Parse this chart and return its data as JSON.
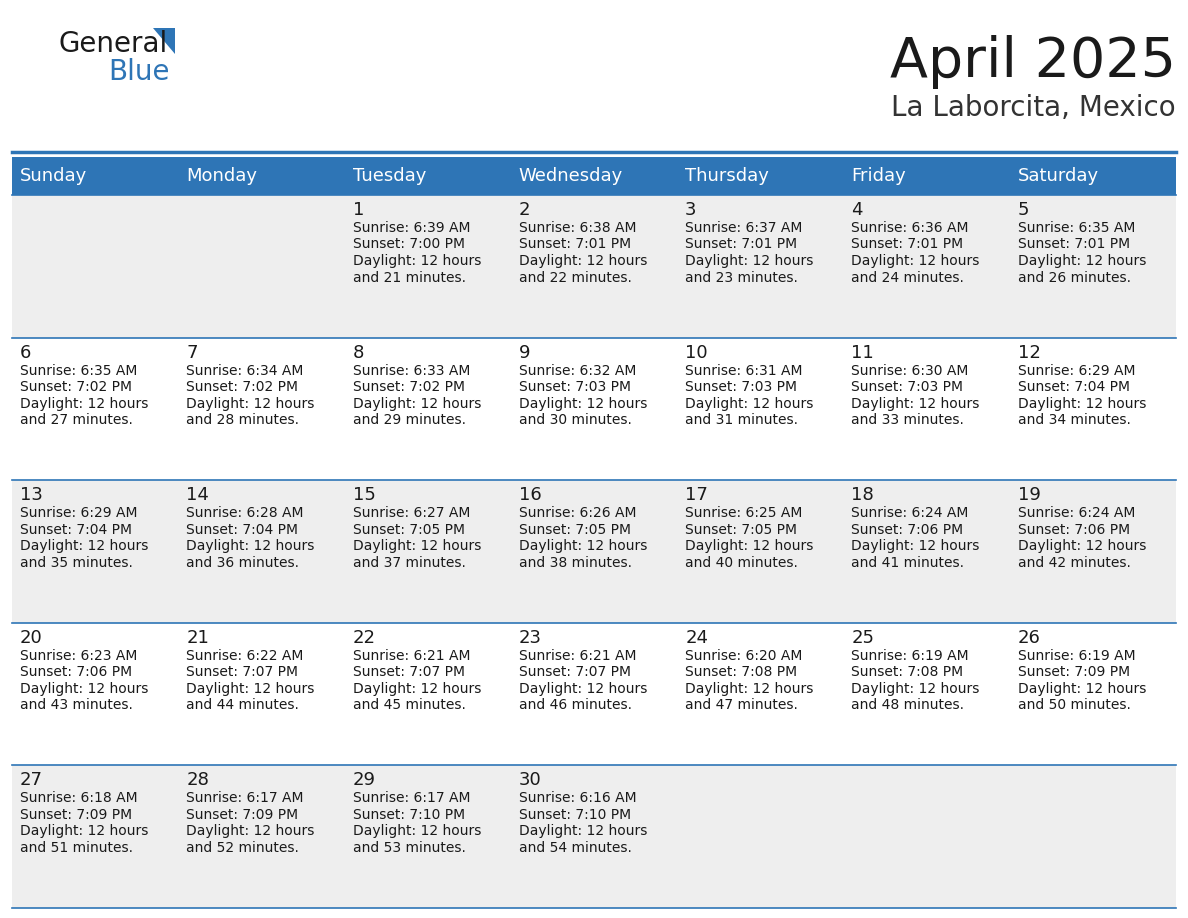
{
  "title": "April 2025",
  "subtitle": "La Laborcita, Mexico",
  "header_bg": "#2e75b6",
  "header_text": "#ffffff",
  "cell_bg_light": "#eeeeee",
  "cell_bg_white": "#ffffff",
  "row_line_color": "#2e75b6",
  "day_names": [
    "Sunday",
    "Monday",
    "Tuesday",
    "Wednesday",
    "Thursday",
    "Friday",
    "Saturday"
  ],
  "days": [
    {
      "day": 1,
      "col": 2,
      "row": 0,
      "sunrise": "6:39 AM",
      "sunset": "7:00 PM",
      "daylight": "12 hours and 21 minutes."
    },
    {
      "day": 2,
      "col": 3,
      "row": 0,
      "sunrise": "6:38 AM",
      "sunset": "7:01 PM",
      "daylight": "12 hours and 22 minutes."
    },
    {
      "day": 3,
      "col": 4,
      "row": 0,
      "sunrise": "6:37 AM",
      "sunset": "7:01 PM",
      "daylight": "12 hours and 23 minutes."
    },
    {
      "day": 4,
      "col": 5,
      "row": 0,
      "sunrise": "6:36 AM",
      "sunset": "7:01 PM",
      "daylight": "12 hours and 24 minutes."
    },
    {
      "day": 5,
      "col": 6,
      "row": 0,
      "sunrise": "6:35 AM",
      "sunset": "7:01 PM",
      "daylight": "12 hours and 26 minutes."
    },
    {
      "day": 6,
      "col": 0,
      "row": 1,
      "sunrise": "6:35 AM",
      "sunset": "7:02 PM",
      "daylight": "12 hours and 27 minutes."
    },
    {
      "day": 7,
      "col": 1,
      "row": 1,
      "sunrise": "6:34 AM",
      "sunset": "7:02 PM",
      "daylight": "12 hours and 28 minutes."
    },
    {
      "day": 8,
      "col": 2,
      "row": 1,
      "sunrise": "6:33 AM",
      "sunset": "7:02 PM",
      "daylight": "12 hours and 29 minutes."
    },
    {
      "day": 9,
      "col": 3,
      "row": 1,
      "sunrise": "6:32 AM",
      "sunset": "7:03 PM",
      "daylight": "12 hours and 30 minutes."
    },
    {
      "day": 10,
      "col": 4,
      "row": 1,
      "sunrise": "6:31 AM",
      "sunset": "7:03 PM",
      "daylight": "12 hours and 31 minutes."
    },
    {
      "day": 11,
      "col": 5,
      "row": 1,
      "sunrise": "6:30 AM",
      "sunset": "7:03 PM",
      "daylight": "12 hours and 33 minutes."
    },
    {
      "day": 12,
      "col": 6,
      "row": 1,
      "sunrise": "6:29 AM",
      "sunset": "7:04 PM",
      "daylight": "12 hours and 34 minutes."
    },
    {
      "day": 13,
      "col": 0,
      "row": 2,
      "sunrise": "6:29 AM",
      "sunset": "7:04 PM",
      "daylight": "12 hours and 35 minutes."
    },
    {
      "day": 14,
      "col": 1,
      "row": 2,
      "sunrise": "6:28 AM",
      "sunset": "7:04 PM",
      "daylight": "12 hours and 36 minutes."
    },
    {
      "day": 15,
      "col": 2,
      "row": 2,
      "sunrise": "6:27 AM",
      "sunset": "7:05 PM",
      "daylight": "12 hours and 37 minutes."
    },
    {
      "day": 16,
      "col": 3,
      "row": 2,
      "sunrise": "6:26 AM",
      "sunset": "7:05 PM",
      "daylight": "12 hours and 38 minutes."
    },
    {
      "day": 17,
      "col": 4,
      "row": 2,
      "sunrise": "6:25 AM",
      "sunset": "7:05 PM",
      "daylight": "12 hours and 40 minutes."
    },
    {
      "day": 18,
      "col": 5,
      "row": 2,
      "sunrise": "6:24 AM",
      "sunset": "7:06 PM",
      "daylight": "12 hours and 41 minutes."
    },
    {
      "day": 19,
      "col": 6,
      "row": 2,
      "sunrise": "6:24 AM",
      "sunset": "7:06 PM",
      "daylight": "12 hours and 42 minutes."
    },
    {
      "day": 20,
      "col": 0,
      "row": 3,
      "sunrise": "6:23 AM",
      "sunset": "7:06 PM",
      "daylight": "12 hours and 43 minutes."
    },
    {
      "day": 21,
      "col": 1,
      "row": 3,
      "sunrise": "6:22 AM",
      "sunset": "7:07 PM",
      "daylight": "12 hours and 44 minutes."
    },
    {
      "day": 22,
      "col": 2,
      "row": 3,
      "sunrise": "6:21 AM",
      "sunset": "7:07 PM",
      "daylight": "12 hours and 45 minutes."
    },
    {
      "day": 23,
      "col": 3,
      "row": 3,
      "sunrise": "6:21 AM",
      "sunset": "7:07 PM",
      "daylight": "12 hours and 46 minutes."
    },
    {
      "day": 24,
      "col": 4,
      "row": 3,
      "sunrise": "6:20 AM",
      "sunset": "7:08 PM",
      "daylight": "12 hours and 47 minutes."
    },
    {
      "day": 25,
      "col": 5,
      "row": 3,
      "sunrise": "6:19 AM",
      "sunset": "7:08 PM",
      "daylight": "12 hours and 48 minutes."
    },
    {
      "day": 26,
      "col": 6,
      "row": 3,
      "sunrise": "6:19 AM",
      "sunset": "7:09 PM",
      "daylight": "12 hours and 50 minutes."
    },
    {
      "day": 27,
      "col": 0,
      "row": 4,
      "sunrise": "6:18 AM",
      "sunset": "7:09 PM",
      "daylight": "12 hours and 51 minutes."
    },
    {
      "day": 28,
      "col": 1,
      "row": 4,
      "sunrise": "6:17 AM",
      "sunset": "7:09 PM",
      "daylight": "12 hours and 52 minutes."
    },
    {
      "day": 29,
      "col": 2,
      "row": 4,
      "sunrise": "6:17 AM",
      "sunset": "7:10 PM",
      "daylight": "12 hours and 53 minutes."
    },
    {
      "day": 30,
      "col": 3,
      "row": 4,
      "sunrise": "6:16 AM",
      "sunset": "7:10 PM",
      "daylight": "12 hours and 54 minutes."
    }
  ],
  "num_rows": 5,
  "num_cols": 7,
  "logo_color_general": "#1a1a1a",
  "logo_color_blue": "#2e75b6",
  "title_fontsize": 40,
  "subtitle_fontsize": 20,
  "header_fontsize": 13,
  "day_num_fontsize": 13,
  "cell_text_fontsize": 10
}
